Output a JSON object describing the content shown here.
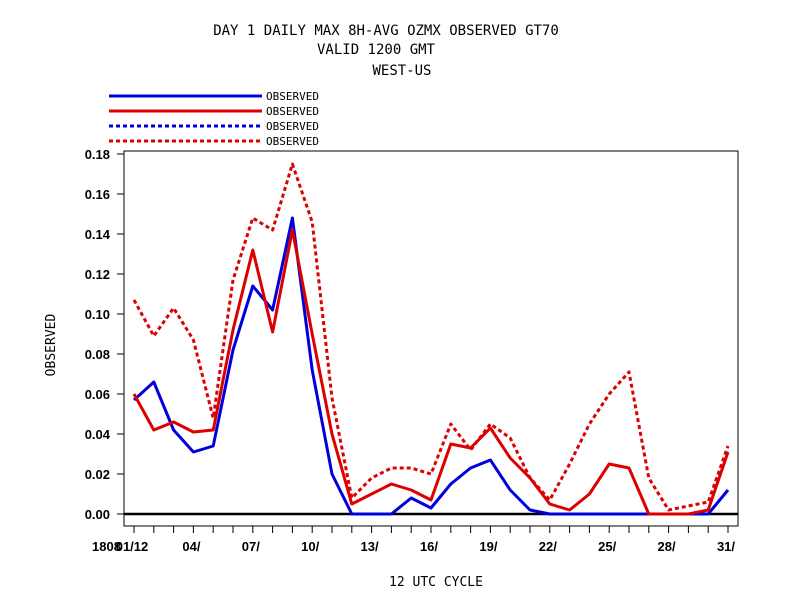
{
  "chart_data": {
    "type": "line",
    "title_lines": [
      "DAY 1 DAILY MAX   8H-AVG OZMX OBSERVED GT70",
      "VALID 1200 GMT",
      "WEST-US"
    ],
    "xlabel": "12 UTC CYCLE",
    "ylabel": "OBSERVED",
    "ylim": [
      0,
      0.18
    ],
    "xlim": [
      0.7,
      31.5
    ],
    "yticks": [
      "0.00",
      "0.02",
      "0.04",
      "0.06",
      "0.08",
      "0.10",
      "0.12",
      "0.14",
      "0.16",
      "0.18"
    ],
    "x_prefix_label": "1808",
    "xtick_labels": [
      {
        "x": 1,
        "label": "01/12"
      },
      {
        "x": 4,
        "label": "04/"
      },
      {
        "x": 7,
        "label": "07/"
      },
      {
        "x": 10,
        "label": "10/"
      },
      {
        "x": 13,
        "label": "13/"
      },
      {
        "x": 16,
        "label": "16/"
      },
      {
        "x": 19,
        "label": "19/"
      },
      {
        "x": 22,
        "label": "22/"
      },
      {
        "x": 25,
        "label": "25/"
      },
      {
        "x": 28,
        "label": "28/"
      },
      {
        "x": 31,
        "label": "31/"
      }
    ],
    "zero_line": true,
    "grid": false,
    "legend_position": "top-left",
    "series": [
      {
        "name": "OBSERVED",
        "color": "#0000dd",
        "dash": "solid",
        "x": [
          1,
          2,
          3,
          4,
          5,
          6,
          7,
          8,
          9,
          10,
          11,
          12,
          13,
          14,
          15,
          16,
          17,
          18,
          19,
          20,
          21,
          22,
          23,
          24,
          25,
          26,
          27,
          28,
          29,
          30,
          31
        ],
        "y": [
          0.057,
          0.066,
          0.042,
          0.031,
          0.034,
          0.082,
          0.114,
          0.102,
          0.148,
          0.072,
          0.02,
          0.0,
          0.0,
          0.0,
          0.008,
          0.003,
          0.015,
          0.023,
          0.027,
          0.012,
          0.002,
          0.0,
          0.0,
          0.0,
          0.0,
          0.0,
          0.0,
          0.0,
          0.0,
          0.0,
          0.012
        ]
      },
      {
        "name": "OBSERVED",
        "color": "#dd0000",
        "dash": "solid",
        "x": [
          1,
          2,
          3,
          4,
          5,
          6,
          7,
          8,
          9,
          10,
          11,
          12,
          13,
          14,
          15,
          16,
          17,
          18,
          19,
          20,
          21,
          22,
          23,
          24,
          25,
          26,
          27,
          28,
          29,
          30,
          31
        ],
        "y": [
          0.06,
          0.042,
          0.046,
          0.041,
          0.042,
          0.092,
          0.132,
          0.091,
          0.142,
          0.09,
          0.04,
          0.005,
          0.01,
          0.015,
          0.012,
          0.007,
          0.035,
          0.033,
          0.043,
          0.028,
          0.018,
          0.005,
          0.002,
          0.01,
          0.025,
          0.023,
          0.0,
          0.0,
          0.0,
          0.002,
          0.031
        ]
      },
      {
        "name": "OBSERVED",
        "color": "#0000dd",
        "dash": "dashed",
        "x": [],
        "y": []
      },
      {
        "name": "OBSERVED",
        "color": "#dd0000",
        "dash": "dashed",
        "x": [
          1,
          2,
          3,
          4,
          5,
          6,
          7,
          8,
          9,
          10,
          11,
          12,
          13,
          14,
          15,
          16,
          17,
          18,
          19,
          20,
          21,
          22,
          23,
          24,
          25,
          26,
          27,
          28,
          29,
          30,
          31
        ],
        "y": [
          0.107,
          0.089,
          0.103,
          0.087,
          0.048,
          0.117,
          0.148,
          0.142,
          0.175,
          0.146,
          0.058,
          0.008,
          0.018,
          0.023,
          0.023,
          0.02,
          0.045,
          0.032,
          0.045,
          0.038,
          0.018,
          0.007,
          0.025,
          0.045,
          0.06,
          0.071,
          0.018,
          0.002,
          0.004,
          0.006,
          0.034
        ]
      }
    ]
  }
}
